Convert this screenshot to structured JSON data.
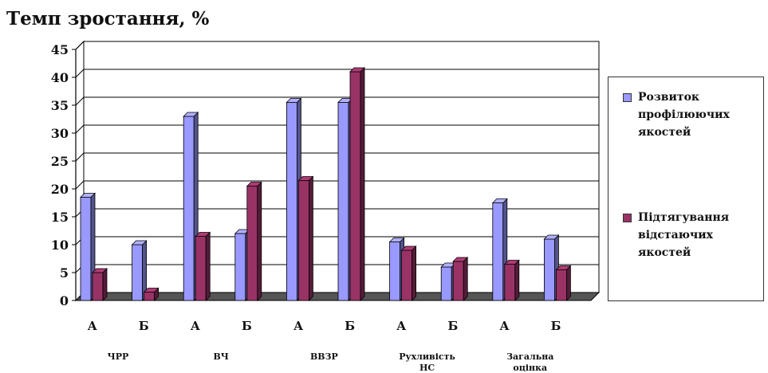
{
  "chart_data": {
    "type": "bar",
    "title": "Темп зростання, %",
    "xlabel": "",
    "ylabel": "",
    "ylim": [
      0,
      45
    ],
    "yticks": [
      0,
      5,
      10,
      15,
      20,
      25,
      30,
      35,
      40,
      45
    ],
    "grid": true,
    "legend_position": "right",
    "groups": [
      {
        "name": "ЧРР",
        "categories": [
          "А",
          "Б"
        ]
      },
      {
        "name": "ВЧ",
        "categories": [
          "А",
          "Б"
        ]
      },
      {
        "name": "ВВЗР",
        "categories": [
          "А",
          "Б"
        ]
      },
      {
        "name": "Рухливість НС",
        "categories": [
          "А",
          "Б"
        ]
      },
      {
        "name": "Загальна оцінка",
        "categories": [
          "А",
          "Б"
        ]
      }
    ],
    "series": [
      {
        "name": "Розвиток профілюючих якостей",
        "color": "#9999ff",
        "values": [
          18.5,
          10,
          33,
          12,
          35.5,
          35.5,
          10.5,
          6,
          17.5,
          11
        ]
      },
      {
        "name": "Підтягування відстаючих якостей",
        "color": "#993366",
        "values": [
          5,
          1.5,
          11.5,
          20.5,
          21.5,
          41,
          9,
          7,
          6.5,
          5.5
        ]
      }
    ]
  }
}
